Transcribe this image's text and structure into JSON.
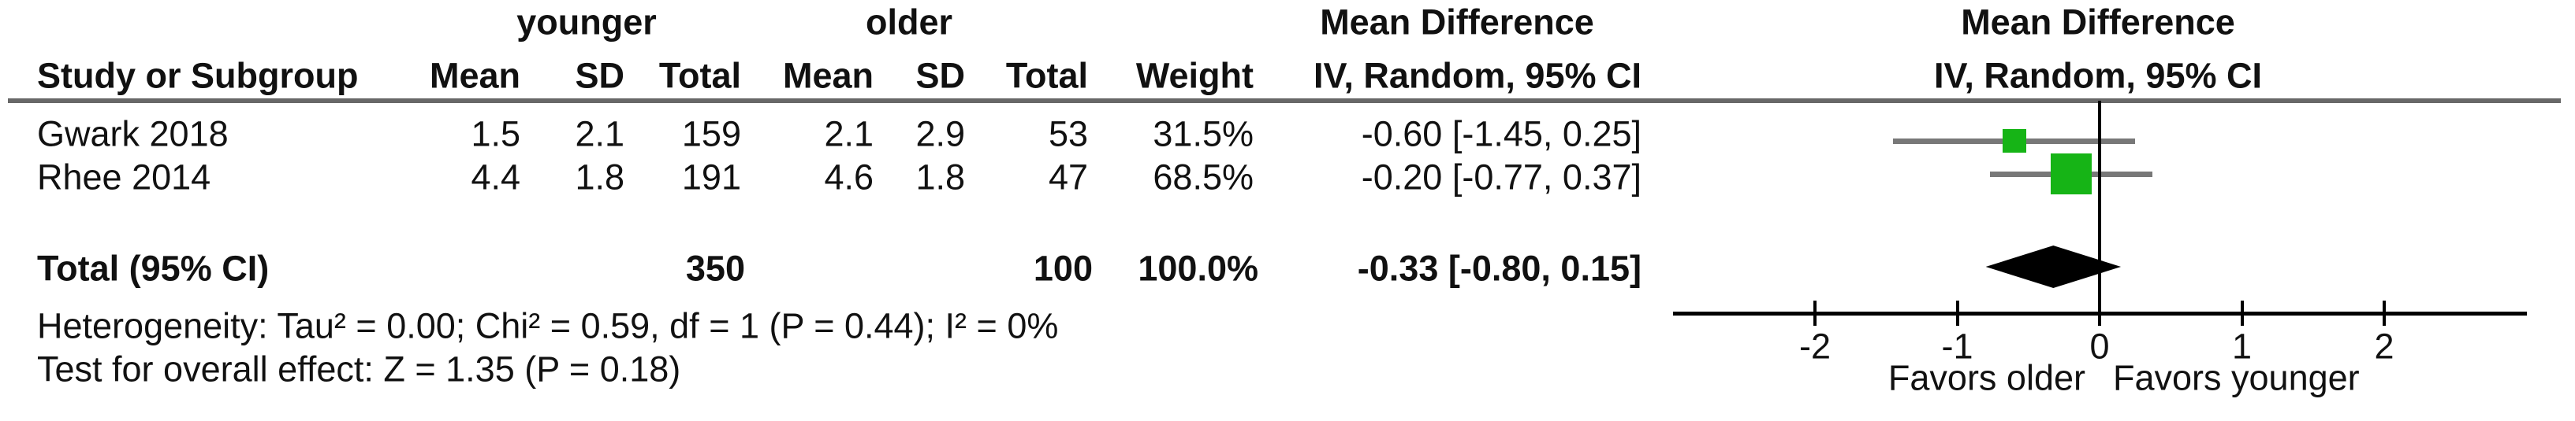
{
  "table": {
    "group_headers": {
      "group1": "younger",
      "group2": "older",
      "effect_col_line1": "Mean Difference",
      "effect_col_line2": "IV, Random, 95% CI"
    },
    "plot_headers": {
      "line1": "Mean Difference",
      "line2": "IV, Random, 95% CI"
    },
    "columns": {
      "study": "Study or Subgroup",
      "mean1": "Mean",
      "sd1": "SD",
      "total1": "Total",
      "mean2": "Mean",
      "sd2": "SD",
      "total2": "Total",
      "weight": "Weight"
    },
    "studies": [
      {
        "name": "Gwark 2018",
        "mean1": "1.5",
        "sd1": "2.1",
        "total1": "159",
        "mean2": "2.1",
        "sd2": "2.9",
        "total2": "53",
        "weight": "31.5%",
        "ci": "-0.60 [-1.45, 0.25]"
      },
      {
        "name": "Rhee 2014",
        "mean1": "4.4",
        "sd1": "1.8",
        "total1": "191",
        "mean2": "4.6",
        "sd2": "1.8",
        "total2": "47",
        "weight": "68.5%",
        "ci": "-0.20 [-0.77, 0.37]"
      }
    ],
    "total_row": {
      "label": "Total (95% CI)",
      "total1": "350",
      "total2": "100",
      "weight": "100.0%",
      "ci": "-0.33 [-0.80, 0.15]"
    },
    "footer": {
      "heterogeneity": "Heterogeneity: Tau² = 0.00; Chi² = 0.59, df = 1 (P = 0.44); I² = 0%",
      "overall_effect": "Test for overall effect: Z = 1.35 (P = 0.18)"
    }
  },
  "chart_data": {
    "type": "forest",
    "effect_measure": "Mean Difference",
    "model": "IV, Random, 95% CI",
    "xlim": [
      -3,
      3
    ],
    "ticks": [
      {
        "value": -2,
        "label": "-2"
      },
      {
        "value": -1,
        "label": "-1"
      },
      {
        "value": 0,
        "label": "0"
      },
      {
        "value": 1,
        "label": "1"
      },
      {
        "value": 2,
        "label": "2"
      }
    ],
    "zero_line": 0,
    "studies": [
      {
        "name": "Gwark 2018",
        "md": -0.6,
        "ci_low": -1.45,
        "ci_high": 0.25,
        "weight_pct": 31.5
      },
      {
        "name": "Rhee 2014",
        "md": -0.2,
        "ci_low": -0.77,
        "ci_high": 0.37,
        "weight_pct": 68.5
      }
    ],
    "total": {
      "md": -0.33,
      "ci_low": -0.8,
      "ci_high": 0.15
    },
    "favors_left": "Favors older",
    "favors_right": "Favors younger",
    "colors": {
      "square": "#16b416",
      "ci_line": "#787878",
      "diamond": "#000000",
      "rule": "#686868",
      "axis": "#000000"
    }
  }
}
